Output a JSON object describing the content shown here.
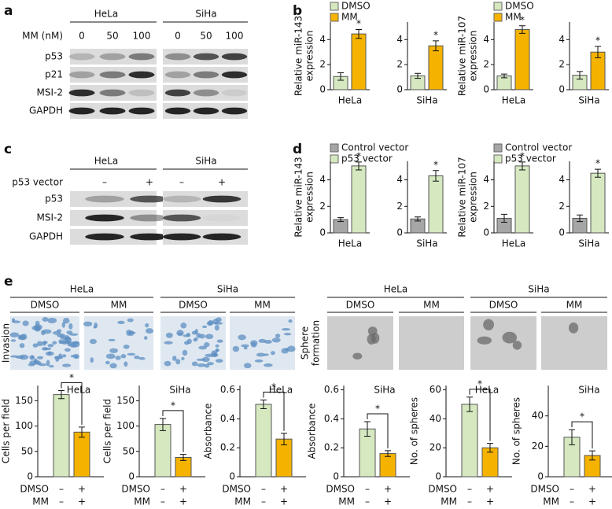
{
  "panel_labels": [
    "a",
    "b",
    "c",
    "d",
    "e"
  ],
  "blot_a": {
    "cells": [
      "HeLa",
      "SiHa"
    ],
    "treatment": "MM (nM)",
    "doses": [
      "0",
      "50",
      "100"
    ],
    "proteins": [
      "p53",
      "p21",
      "MSI-2",
      "GAPDH"
    ]
  },
  "blot_c": {
    "cells": [
      "HeLa",
      "SiHa"
    ],
    "treatment": "p53 vector",
    "conditions": [
      "–",
      "+"
    ],
    "proteins": [
      "p53",
      "MSI-2",
      "GAPDH"
    ]
  },
  "images_e": {
    "left": {
      "cells": [
        "HeLa",
        "SiHa"
      ],
      "conditions": [
        "DMSO",
        "MM"
      ],
      "label": [
        "Invasion"
      ]
    },
    "right": {
      "cells": [
        "HeLa",
        "SiHa"
      ],
      "conditions": [
        "DMSO",
        "MM"
      ],
      "label": [
        "Sphere",
        "formation"
      ]
    }
  },
  "chart_data": [
    {
      "type": "bar",
      "ylabel": [
        "Relative miR-143",
        "expression"
      ],
      "categories": [
        "HeLa",
        "SiHa"
      ],
      "series": [
        {
          "name": "DMSO",
          "color": "#d5e8c0",
          "values": [
            1.05,
            1.1
          ],
          "errors": [
            0.3,
            0.2
          ]
        },
        {
          "name": "MM",
          "color": "#f5b300",
          "values": [
            4.45,
            3.5
          ],
          "errors": [
            0.35,
            0.4
          ]
        }
      ],
      "ylim": [
        0,
        5.4
      ],
      "yticks": [
        0,
        2,
        4
      ],
      "significance": "*"
    },
    {
      "type": "bar",
      "ylabel": [
        "Relative miR-107",
        "expression"
      ],
      "categories": [
        "HeLa",
        "SiHa"
      ],
      "series": [
        {
          "name": "DMSO",
          "color": "#d5e8c0",
          "values": [
            1.1,
            1.15
          ],
          "errors": [
            0.15,
            0.3
          ]
        },
        {
          "name": "MM",
          "color": "#f5b300",
          "values": [
            4.8,
            3.0
          ],
          "errors": [
            0.3,
            0.45
          ]
        }
      ],
      "ylim": [
        0,
        5.4
      ],
      "yticks": [
        0,
        2,
        4
      ],
      "significance": "*"
    },
    {
      "type": "bar",
      "ylabel": [
        "Relative miR-143",
        "expression"
      ],
      "categories": [
        "HeLa",
        "SiHa"
      ],
      "series": [
        {
          "name": "Control vector",
          "color": "#a6a6a6",
          "values": [
            1.0,
            1.05
          ],
          "errors": [
            0.15,
            0.15
          ]
        },
        {
          "name": "p53 vector",
          "color": "#d5e8c0",
          "values": [
            5.05,
            4.3
          ],
          "errors": [
            0.3,
            0.4
          ]
        }
      ],
      "ylim": [
        0,
        5.4
      ],
      "yticks": [
        0,
        2,
        4
      ],
      "significance": "*"
    },
    {
      "type": "bar",
      "ylabel": [
        "Relative miR-107",
        "expression"
      ],
      "categories": [
        "HeLa",
        "SiHa"
      ],
      "series": [
        {
          "name": "Control vector",
          "color": "#a6a6a6",
          "values": [
            1.1,
            1.1
          ],
          "errors": [
            0.3,
            0.25
          ]
        },
        {
          "name": "p53 vector",
          "color": "#d5e8c0",
          "values": [
            5.05,
            4.5
          ],
          "errors": [
            0.3,
            0.3
          ]
        }
      ],
      "ylim": [
        0,
        5.4
      ],
      "yticks": [
        0,
        2,
        4
      ],
      "significance": "*"
    },
    {
      "type": "bar",
      "title": "HeLa",
      "ylabel": [
        "Cells per field"
      ],
      "values": [
        162,
        88
      ],
      "errors": [
        8,
        10
      ],
      "colors": [
        "#d5e8c0",
        "#f5b300"
      ],
      "ylim": [
        0,
        180
      ],
      "yticks": [
        0,
        50,
        100,
        150
      ],
      "significance": "*",
      "conditions": [
        {
          "name": "DMSO",
          "signs": [
            "–",
            "+"
          ]
        },
        {
          "name": "MM",
          "signs": [
            "–",
            "+"
          ]
        }
      ]
    },
    {
      "type": "bar",
      "title": "SiHa",
      "ylabel": [
        "Cells per field"
      ],
      "values": [
        103,
        38
      ],
      "errors": [
        12,
        6
      ],
      "colors": [
        "#d5e8c0",
        "#f5b300"
      ],
      "ylim": [
        0,
        180
      ],
      "yticks": [
        0,
        50,
        100,
        150
      ],
      "significance": "*",
      "conditions": [
        {
          "name": "DMSO",
          "signs": [
            "–",
            "+"
          ]
        },
        {
          "name": "MM",
          "signs": [
            "–",
            "+"
          ]
        }
      ]
    },
    {
      "type": "bar",
      "title": "HeLa",
      "ylabel": [
        "Absorbance"
      ],
      "values": [
        0.5,
        0.26
      ],
      "errors": [
        0.03,
        0.04
      ],
      "colors": [
        "#d5e8c0",
        "#f5b300"
      ],
      "ylim": [
        0,
        0.63
      ],
      "yticks": [
        0,
        0.2,
        0.4,
        0.6
      ],
      "significance": "*",
      "conditions": [
        {
          "name": "DMSO",
          "signs": [
            "–",
            "+"
          ]
        },
        {
          "name": "MM",
          "signs": [
            "–",
            "+"
          ]
        }
      ]
    },
    {
      "type": "bar",
      "title": "SiHa",
      "ylabel": [
        "Absorbance"
      ],
      "values": [
        0.33,
        0.16
      ],
      "errors": [
        0.05,
        0.02
      ],
      "colors": [
        "#d5e8c0",
        "#f5b300"
      ],
      "ylim": [
        0,
        0.63
      ],
      "yticks": [
        0,
        0.2,
        0.4,
        0.6
      ],
      "significance": "*",
      "conditions": [
        {
          "name": "DMSO",
          "signs": [
            "–",
            "+"
          ]
        },
        {
          "name": "MM",
          "signs": [
            "–",
            "+"
          ]
        }
      ]
    },
    {
      "type": "bar",
      "title": "HeLa",
      "ylabel": [
        "No. of spheres"
      ],
      "values": [
        50,
        20
      ],
      "errors": [
        5,
        3
      ],
      "colors": [
        "#d5e8c0",
        "#f5b300"
      ],
      "ylim": [
        0,
        63
      ],
      "yticks": [
        0,
        20,
        40,
        60
      ],
      "significance": "*",
      "conditions": [
        {
          "name": "DMSO",
          "signs": [
            "–",
            "+"
          ]
        },
        {
          "name": "MM",
          "signs": [
            "–",
            "+"
          ]
        }
      ]
    },
    {
      "type": "bar",
      "title": "SiHa",
      "ylabel": [
        "No. of spheres"
      ],
      "values": [
        26,
        14
      ],
      "errors": [
        5,
        3
      ],
      "colors": [
        "#d5e8c0",
        "#f5b300"
      ],
      "ylim": [
        0,
        60
      ],
      "yticks": [
        0,
        20,
        40
      ],
      "significance": "*",
      "conditions": [
        {
          "name": "DMSO",
          "signs": [
            "–",
            "+"
          ]
        },
        {
          "name": "MM",
          "signs": [
            "–",
            "+"
          ]
        }
      ]
    }
  ]
}
